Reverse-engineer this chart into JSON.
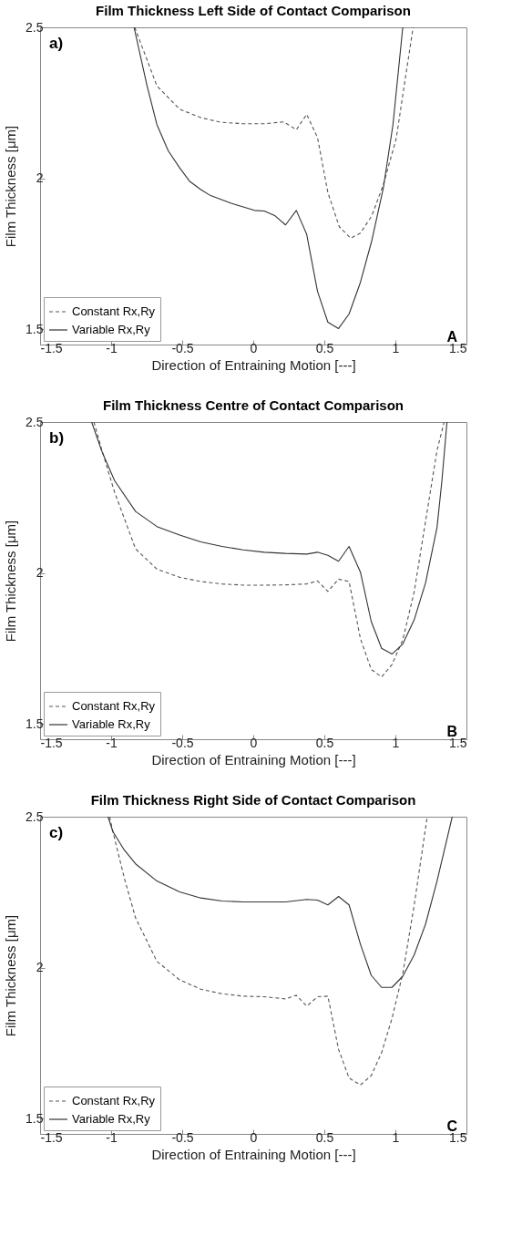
{
  "chart_data": [
    {
      "type": "line",
      "title": "Film Thickness Left Side of Contact Comparison",
      "xlabel": "Direction of Entraining Motion [---]",
      "ylabel": "Film Thickness [μm]",
      "annotations": [
        "a)",
        "A"
      ],
      "xlim": [
        -1.5,
        1.5
      ],
      "xticks": [
        -1.5,
        -1,
        -0.5,
        0,
        0.5,
        1,
        1.5
      ],
      "ylim": [
        1.45,
        2.5
      ],
      "yticks": [
        1.5,
        2,
        2.5
      ],
      "grid": false,
      "legend": "bottom left",
      "series": [
        {
          "name": "Constant Rx,Ry",
          "color": "#555555",
          "line_style": "dashed",
          "x": [
            -0.834,
            -0.678,
            -0.518,
            -0.369,
            -0.231,
            -0.071,
            0.078,
            0.215,
            0.303,
            0.376,
            0.452,
            0.525,
            0.605,
            0.685,
            0.754,
            0.834,
            0.915,
            1.006,
            1.075,
            1.125
          ],
          "values": [
            2.5,
            2.306,
            2.229,
            2.201,
            2.186,
            2.181,
            2.181,
            2.187,
            2.161,
            2.212,
            2.135,
            1.953,
            1.84,
            1.802,
            1.819,
            1.876,
            1.979,
            2.132,
            2.347,
            2.5
          ]
        },
        {
          "name": "Variable Rx,Ry",
          "color": "#333333",
          "line_style": "solid",
          "x": [
            -0.839,
            -0.747,
            -0.678,
            -0.598,
            -0.518,
            -0.449,
            -0.369,
            -0.3,
            -0.151,
            0.009,
            0.078,
            0.154,
            0.227,
            0.303,
            0.376,
            0.452,
            0.525,
            0.6,
            0.674,
            0.754,
            0.834,
            0.915,
            0.983,
            1.052
          ],
          "values": [
            2.5,
            2.306,
            2.178,
            2.091,
            2.035,
            1.991,
            1.963,
            1.943,
            1.917,
            1.894,
            1.892,
            1.876,
            1.846,
            1.894,
            1.815,
            1.626,
            1.524,
            1.503,
            1.551,
            1.656,
            1.794,
            1.968,
            2.178,
            2.5
          ]
        }
      ]
    },
    {
      "type": "line",
      "title": "Film Thickness Centre of Contact Comparison",
      "xlabel": "Direction of Entraining Motion [---]",
      "ylabel": "Film Thickness [μm]",
      "annotations": [
        "b)",
        "B"
      ],
      "xlim": [
        -1.5,
        1.5
      ],
      "xticks": [
        -1.5,
        -1,
        -0.5,
        0,
        0.5,
        1,
        1.5
      ],
      "ylim": [
        1.45,
        2.5
      ],
      "yticks": [
        1.5,
        2,
        2.5
      ],
      "grid": false,
      "legend": "bottom left",
      "series": [
        {
          "name": "Constant Rx,Ry",
          "color": "#555555",
          "line_style": "dashed",
          "x": [
            -1.121,
            -1.068,
            -0.976,
            -0.828,
            -0.678,
            -0.518,
            -0.369,
            -0.22,
            -0.071,
            0.078,
            0.227,
            0.376,
            0.452,
            0.525,
            0.6,
            0.674,
            0.754,
            0.83,
            0.903,
            0.976,
            1.052,
            1.132,
            1.212,
            1.293,
            1.343
          ],
          "values": [
            2.5,
            2.411,
            2.268,
            2.08,
            2.013,
            1.986,
            1.972,
            1.964,
            1.96,
            1.96,
            1.961,
            1.964,
            1.974,
            1.939,
            1.98,
            1.972,
            1.783,
            1.681,
            1.656,
            1.697,
            1.779,
            1.937,
            2.171,
            2.406,
            2.5
          ]
        },
        {
          "name": "Variable Rx,Ry",
          "color": "#333333",
          "line_style": "solid",
          "x": [
            -1.137,
            -1.068,
            -0.976,
            -0.828,
            -0.678,
            -0.518,
            -0.369,
            -0.22,
            -0.071,
            0.078,
            0.227,
            0.376,
            0.452,
            0.525,
            0.6,
            0.674,
            0.754,
            0.83,
            0.903,
            0.976,
            1.052,
            1.132,
            1.212,
            1.293,
            1.327,
            1.363
          ],
          "values": [
            2.5,
            2.406,
            2.306,
            2.204,
            2.154,
            2.126,
            2.103,
            2.088,
            2.077,
            2.069,
            2.065,
            2.063,
            2.069,
            2.059,
            2.039,
            2.088,
            2.003,
            1.84,
            1.751,
            1.732,
            1.765,
            1.845,
            1.967,
            2.151,
            2.304,
            2.5
          ]
        }
      ]
    },
    {
      "type": "line",
      "title": "Film Thickness Right Side of Contact Comparison",
      "xlabel": "Direction of Entraining Motion [---]",
      "ylabel": "Film Thickness [μm]",
      "annotations": [
        "c)",
        "C"
      ],
      "xlim": [
        -1.5,
        1.5
      ],
      "xticks": [
        -1.5,
        -1,
        -0.5,
        0,
        0.5,
        1,
        1.5
      ],
      "ylim": [
        1.45,
        2.5
      ],
      "yticks": [
        1.5,
        2,
        2.5
      ],
      "grid": false,
      "legend": "bottom left",
      "series": [
        {
          "name": "Constant Rx,Ry",
          "color": "#555555",
          "line_style": "dashed",
          "x": [
            -1.011,
            -0.988,
            -0.908,
            -0.828,
            -0.678,
            -0.518,
            -0.369,
            -0.22,
            -0.071,
            0.078,
            0.227,
            0.303,
            0.376,
            0.452,
            0.525,
            0.6,
            0.674,
            0.754,
            0.83,
            0.903,
            0.976,
            1.052,
            1.132,
            1.224
          ],
          "values": [
            2.5,
            2.451,
            2.298,
            2.165,
            2.021,
            1.96,
            1.929,
            1.914,
            1.906,
            1.904,
            1.897,
            1.909,
            1.873,
            1.904,
            1.906,
            1.73,
            1.635,
            1.612,
            1.643,
            1.719,
            1.832,
            1.981,
            2.206,
            2.5
          ]
        },
        {
          "name": "Variable Rx,Ry",
          "color": "#333333",
          "line_style": "solid",
          "x": [
            -1.022,
            -0.988,
            -0.908,
            -0.828,
            -0.678,
            -0.518,
            -0.369,
            -0.22,
            -0.071,
            0.078,
            0.227,
            0.376,
            0.452,
            0.525,
            0.6,
            0.674,
            0.754,
            0.83,
            0.903,
            0.976,
            1.052,
            1.132,
            1.212,
            1.293,
            1.4
          ],
          "values": [
            2.5,
            2.451,
            2.39,
            2.344,
            2.287,
            2.251,
            2.231,
            2.221,
            2.218,
            2.218,
            2.218,
            2.226,
            2.224,
            2.208,
            2.236,
            2.208,
            2.078,
            1.975,
            1.935,
            1.935,
            1.972,
            2.042,
            2.144,
            2.287,
            2.5
          ]
        }
      ]
    }
  ]
}
